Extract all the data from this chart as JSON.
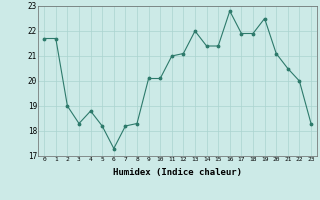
{
  "x": [
    0,
    1,
    2,
    3,
    4,
    5,
    6,
    7,
    8,
    9,
    10,
    11,
    12,
    13,
    14,
    15,
    16,
    17,
    18,
    19,
    20,
    21,
    22,
    23
  ],
  "y": [
    21.7,
    21.7,
    19.0,
    18.3,
    18.8,
    18.2,
    17.3,
    18.2,
    18.3,
    20.1,
    20.1,
    21.0,
    21.1,
    22.0,
    21.4,
    21.4,
    22.8,
    21.9,
    21.9,
    22.5,
    21.1,
    20.5,
    20.0,
    18.3
  ],
  "xlabel": "Humidex (Indice chaleur)",
  "ylim": [
    17,
    23
  ],
  "xlim": [
    -0.5,
    23.5
  ],
  "yticks": [
    17,
    18,
    19,
    20,
    21,
    22,
    23
  ],
  "xticks": [
    0,
    1,
    2,
    3,
    4,
    5,
    6,
    7,
    8,
    9,
    10,
    11,
    12,
    13,
    14,
    15,
    16,
    17,
    18,
    19,
    20,
    21,
    22,
    23
  ],
  "line_color": "#2d7a6b",
  "marker_color": "#2d7a6b",
  "bg_color": "#cceae7",
  "grid_color": "#aad4d0",
  "font_color": "#000000"
}
